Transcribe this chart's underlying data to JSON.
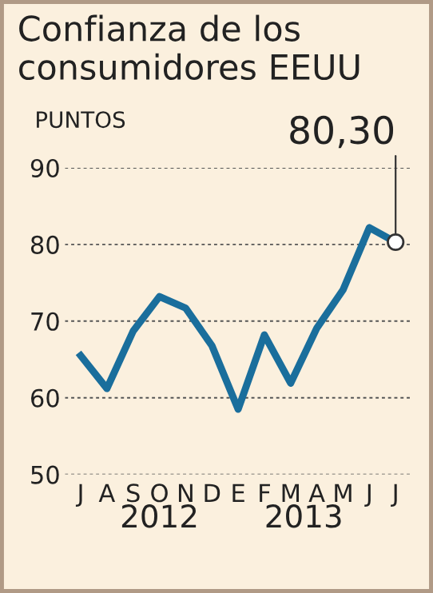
{
  "chart_data": {
    "type": "line",
    "title": "Confianza de los consumidores EEUU",
    "ylabel": "PUNTOS",
    "categories": [
      "J",
      "A",
      "S",
      "O",
      "N",
      "D",
      "E",
      "F",
      "M",
      "A",
      "M",
      "J",
      "J"
    ],
    "series": [
      {
        "color": "#1a6e9c",
        "values": [
          65.5,
          61.2,
          68.7,
          73.2,
          71.7,
          66.8,
          58.5,
          68.2,
          61.9,
          69.1,
          74.1,
          82.2,
          80.3
        ],
        "value_labels": [
          null,
          null,
          null,
          null,
          null,
          null,
          null,
          null,
          null,
          null,
          null,
          null,
          "80,30"
        ]
      }
    ],
    "ylim": [
      50,
      90
    ],
    "yticks": [
      50,
      60,
      70,
      80,
      90
    ],
    "grid": "y",
    "marker": "none",
    "line_style": "solid",
    "annotations": [
      "2012",
      "2013"
    ]
  }
}
